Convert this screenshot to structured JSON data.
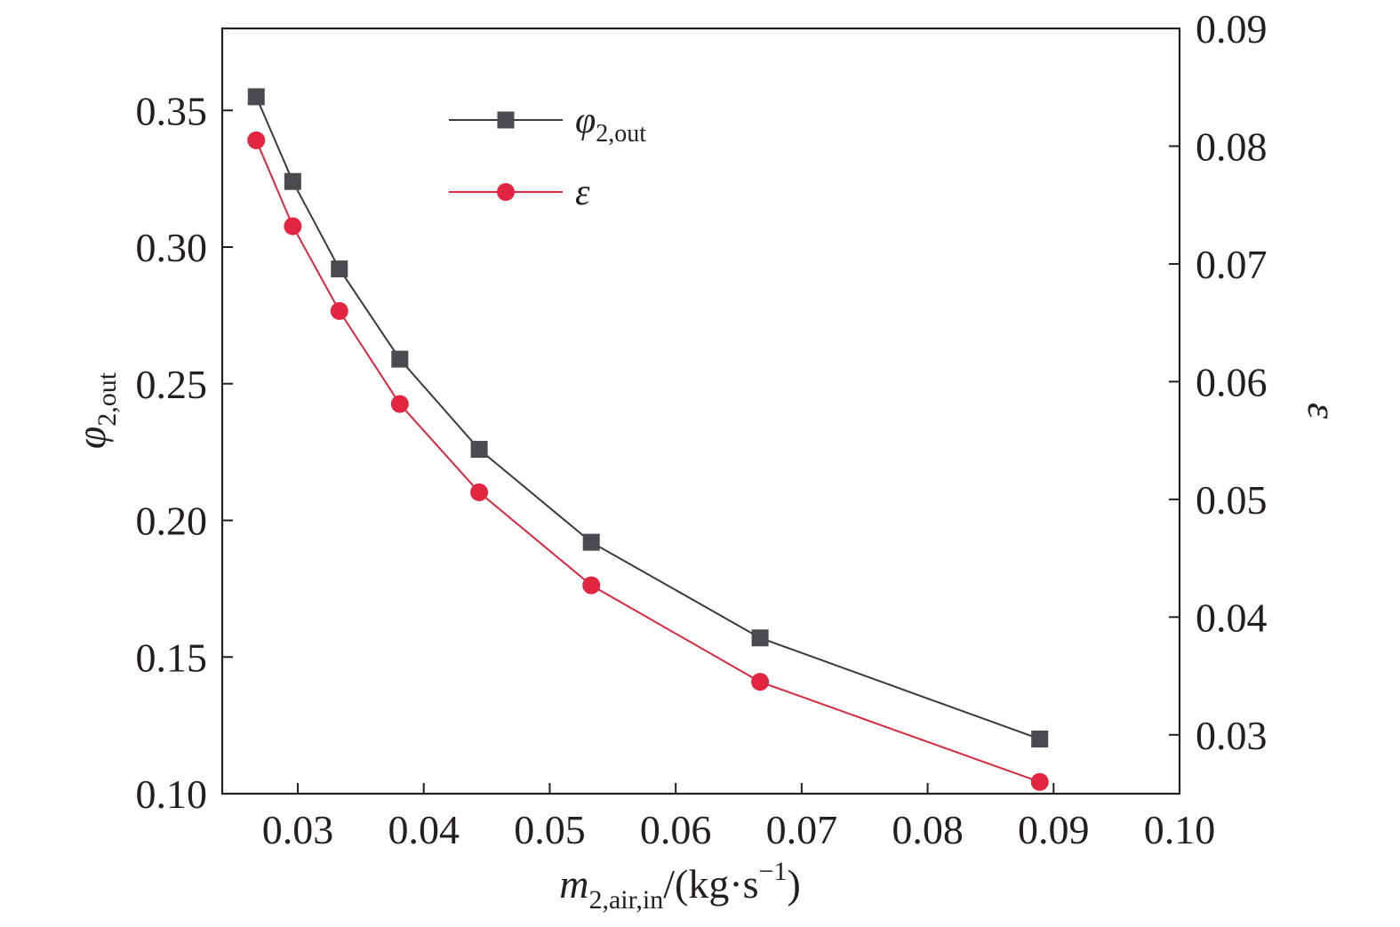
{
  "chart_data": {
    "type": "line",
    "xlabel": {
      "var": "m",
      "sub": "2,air,in",
      "unit_pre": "/(kg·s",
      "unit_sup": "−1",
      "unit_post": ")"
    },
    "ylabel_left": {
      "var": "φ",
      "sub": "2,out"
    },
    "ylabel_right": {
      "var": "ε"
    },
    "xlim": [
      0.024,
      0.1
    ],
    "ylim_left": [
      0.1,
      0.38
    ],
    "ylim_right": [
      0.025,
      0.09
    ],
    "x_ticks": [
      "0.03",
      "0.04",
      "0.05",
      "0.06",
      "0.07",
      "0.08",
      "0.09",
      "0.10"
    ],
    "x_tick_values": [
      0.03,
      0.04,
      0.05,
      0.06,
      0.07,
      0.08,
      0.09,
      0.1
    ],
    "yl_ticks": [
      "0.10",
      "0.15",
      "0.20",
      "0.25",
      "0.30",
      "0.35"
    ],
    "yl_tick_values": [
      0.1,
      0.15,
      0.2,
      0.25,
      0.3,
      0.35
    ],
    "yr_ticks": [
      "0.03",
      "0.04",
      "0.05",
      "0.06",
      "0.07",
      "0.08",
      "0.09"
    ],
    "yr_tick_values": [
      0.03,
      0.04,
      0.05,
      0.06,
      0.07,
      0.08,
      0.09
    ],
    "grid": false,
    "legend_position": "top-left",
    "series": [
      {
        "name": "φ",
        "name_sub": "2,out",
        "axis": "left",
        "marker": "square",
        "color": "#4a4a4f",
        "line_color": "#3a3a3a",
        "x": [
          0.0267,
          0.0296,
          0.0333,
          0.0381,
          0.0444,
          0.0533,
          0.0667,
          0.0889
        ],
        "y": [
          0.355,
          0.324,
          0.292,
          0.259,
          0.226,
          0.192,
          0.157,
          0.12
        ]
      },
      {
        "name": "ε",
        "axis": "right",
        "marker": "circle",
        "color": "#e2263f",
        "line_color": "#d8283f",
        "x": [
          0.0267,
          0.0296,
          0.0333,
          0.0381,
          0.0444,
          0.0533,
          0.0667,
          0.0889
        ],
        "y": [
          0.0805,
          0.0732,
          0.066,
          0.0581,
          0.0506,
          0.0427,
          0.0345,
          0.026
        ]
      }
    ]
  }
}
